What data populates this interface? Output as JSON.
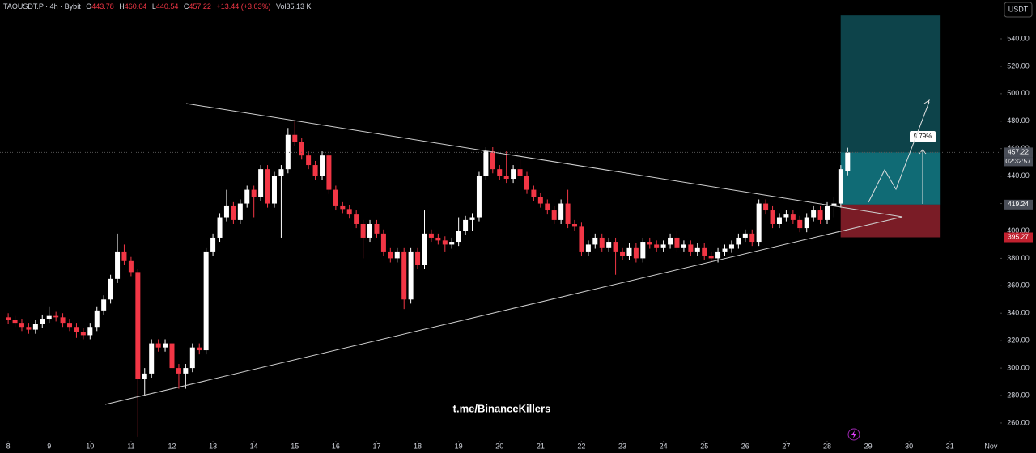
{
  "chart_data": {
    "type": "candlestick",
    "symbol": "TAOUSDT.P · 4h · Bybit",
    "ohlc_labels": [
      "O",
      "H",
      "L",
      "C"
    ],
    "change": "+13.44 (+3.03%)",
    "volume": "Vol35.13 K",
    "currency": "USDT",
    "countdown": "02:32:57",
    "watermark": "t.me/BinanceKillers",
    "xlim": [
      7.8,
      32.21
    ],
    "ylim": [
      247,
      568.3
    ],
    "xticks": [
      8,
      9,
      10,
      11,
      12,
      13,
      14,
      15,
      16,
      17,
      18,
      19,
      20,
      21,
      22,
      23,
      24,
      25,
      26,
      27,
      28,
      29,
      30,
      31,
      {
        "value": 32,
        "label": "Nov"
      }
    ],
    "yticks": [
      {
        "value": 260,
        "label": "260.00"
      },
      {
        "value": 280,
        "label": "280.00"
      },
      {
        "value": 300,
        "label": "300.00"
      },
      {
        "value": 320,
        "label": "320.00"
      },
      {
        "value": 340,
        "label": "340.00"
      },
      {
        "value": 360,
        "label": "360.00"
      },
      {
        "value": 380,
        "label": "380.00"
      },
      {
        "value": 400,
        "label": "400.00"
      },
      {
        "value": 420,
        "label": "420.00"
      },
      {
        "value": 440,
        "label": "440.00"
      },
      {
        "value": 460,
        "label": "460.00"
      },
      {
        "value": 480,
        "label": "480.00"
      },
      {
        "value": 500,
        "label": "500.00"
      },
      {
        "value": 520,
        "label": "520.00"
      },
      {
        "value": 540,
        "label": "540.00"
      }
    ],
    "up_color": "#ffffff",
    "down_color": "#f23645",
    "position": {
      "entry": 419.24,
      "stop": 395.27,
      "target": 557,
      "x_start": 28.33,
      "x_end": 30.77,
      "label": "9.79%",
      "entry_label": "419.24",
      "stop_label": "395.27"
    },
    "x": [
      8,
      8.167,
      8.333,
      8.5,
      8.667,
      8.833,
      9,
      9.167,
      9.333,
      9.5,
      9.667,
      9.833,
      10,
      10.167,
      10.333,
      10.5,
      10.667,
      10.833,
      11,
      11.167,
      11.333,
      11.5,
      11.667,
      11.833,
      12,
      12.167,
      12.333,
      12.5,
      12.667,
      12.833,
      13,
      13.167,
      13.333,
      13.5,
      13.667,
      13.833,
      14,
      14.167,
      14.333,
      14.5,
      14.667,
      14.833,
      15,
      15.167,
      15.333,
      15.5,
      15.667,
      15.833,
      16,
      16.167,
      16.333,
      16.5,
      16.667,
      16.833,
      17,
      17.167,
      17.333,
      17.5,
      17.667,
      17.833,
      18,
      18.167,
      18.333,
      18.5,
      18.667,
      18.833,
      19,
      19.167,
      19.333,
      19.5,
      19.667,
      19.833,
      20,
      20.167,
      20.333,
      20.5,
      20.667,
      20.833,
      21,
      21.167,
      21.333,
      21.5,
      21.667,
      21.833,
      22,
      22.167,
      22.333,
      22.5,
      22.667,
      22.833,
      23,
      23.167,
      23.333,
      23.5,
      23.667,
      23.833,
      24,
      24.167,
      24.333,
      24.5,
      24.667,
      24.833,
      25,
      25.167,
      25.333,
      25.5,
      25.667,
      25.833,
      26,
      26.167,
      26.333,
      26.5,
      26.667,
      26.833,
      27,
      27.167,
      27.333,
      27.5,
      27.667,
      27.833,
      28,
      28.167,
      28.333,
      28.5
    ],
    "ohlc": [
      [
        337,
        340,
        332,
        335
      ],
      [
        335,
        338,
        330,
        333
      ],
      [
        333,
        336,
        327,
        330
      ],
      [
        330,
        333,
        325,
        328
      ],
      [
        328,
        335,
        325,
        332
      ],
      [
        332,
        339,
        329,
        336
      ],
      [
        336,
        345,
        333,
        338
      ],
      [
        338,
        341,
        334,
        337
      ],
      [
        337,
        340,
        330,
        333
      ],
      [
        333,
        336,
        327,
        330
      ],
      [
        330,
        333,
        322,
        326
      ],
      [
        326,
        329,
        321,
        324
      ],
      [
        324,
        333,
        321,
        330
      ],
      [
        330,
        345,
        327,
        342
      ],
      [
        342,
        353,
        339,
        350
      ],
      [
        350,
        368,
        347,
        365
      ],
      [
        365,
        398,
        362,
        385
      ],
      [
        385,
        390,
        375,
        378
      ],
      [
        378,
        381,
        367,
        370
      ],
      [
        370,
        372,
        250,
        292
      ],
      [
        292,
        300,
        280,
        296
      ],
      [
        296,
        321,
        293,
        318
      ],
      [
        318,
        321,
        312,
        315
      ],
      [
        315,
        321,
        312,
        318
      ],
      [
        318,
        321,
        297,
        300
      ],
      [
        300,
        303,
        285,
        296
      ],
      [
        296,
        303,
        285,
        300
      ],
      [
        300,
        318,
        297,
        315
      ],
      [
        315,
        318,
        310,
        313
      ],
      [
        313,
        388,
        310,
        385
      ],
      [
        385,
        398,
        382,
        395
      ],
      [
        395,
        413,
        392,
        410
      ],
      [
        410,
        430,
        407,
        418
      ],
      [
        418,
        421,
        405,
        408
      ],
      [
        408,
        423,
        405,
        420
      ],
      [
        420,
        433,
        417,
        430
      ],
      [
        430,
        433,
        410,
        425
      ],
      [
        425,
        448,
        422,
        445
      ],
      [
        445,
        448,
        417,
        420
      ],
      [
        420,
        443,
        417,
        440
      ],
      [
        440,
        448,
        395,
        445
      ],
      [
        445,
        475,
        442,
        470
      ],
      [
        470,
        480,
        462,
        465
      ],
      [
        465,
        468,
        452,
        455
      ],
      [
        455,
        458,
        445,
        448
      ],
      [
        448,
        451,
        437,
        440
      ],
      [
        440,
        458,
        437,
        455
      ],
      [
        455,
        458,
        427,
        430
      ],
      [
        430,
        433,
        415,
        418
      ],
      [
        418,
        421,
        413,
        416
      ],
      [
        416,
        419,
        409,
        412
      ],
      [
        412,
        415,
        402,
        405
      ],
      [
        405,
        408,
        380,
        395
      ],
      [
        395,
        408,
        392,
        405
      ],
      [
        405,
        408,
        395,
        398
      ],
      [
        398,
        401,
        382,
        385
      ],
      [
        385,
        388,
        377,
        380
      ],
      [
        380,
        388,
        377,
        385
      ],
      [
        385,
        388,
        343,
        350
      ],
      [
        350,
        388,
        347,
        385
      ],
      [
        385,
        388,
        372,
        375
      ],
      [
        375,
        415,
        372,
        398
      ],
      [
        398,
        401,
        392,
        395
      ],
      [
        395,
        398,
        390,
        393
      ],
      [
        393,
        396,
        385,
        390
      ],
      [
        390,
        395,
        387,
        392
      ],
      [
        392,
        410,
        389,
        400
      ],
      [
        400,
        411,
        397,
        408
      ],
      [
        408,
        413,
        400,
        410
      ],
      [
        410,
        443,
        407,
        440
      ],
      [
        440,
        461,
        437,
        458
      ],
      [
        458,
        461,
        442,
        445
      ],
      [
        445,
        448,
        437,
        440
      ],
      [
        440,
        458,
        435,
        438
      ],
      [
        438,
        448,
        435,
        445
      ],
      [
        445,
        452,
        437,
        440
      ],
      [
        440,
        443,
        427,
        430
      ],
      [
        430,
        433,
        422,
        425
      ],
      [
        425,
        428,
        417,
        420
      ],
      [
        420,
        423,
        412,
        415
      ],
      [
        415,
        418,
        405,
        408
      ],
      [
        408,
        423,
        405,
        420
      ],
      [
        420,
        430,
        402,
        405
      ],
      [
        405,
        408,
        400,
        403
      ],
      [
        403,
        406,
        382,
        385
      ],
      [
        385,
        393,
        382,
        390
      ],
      [
        390,
        398,
        387,
        395
      ],
      [
        395,
        398,
        385,
        388
      ],
      [
        388,
        395,
        385,
        392
      ],
      [
        392,
        395,
        368,
        385
      ],
      [
        385,
        388,
        379,
        382
      ],
      [
        382,
        391,
        379,
        388
      ],
      [
        388,
        391,
        377,
        380
      ],
      [
        380,
        395,
        377,
        392
      ],
      [
        392,
        395,
        387,
        390
      ],
      [
        390,
        393,
        385,
        388
      ],
      [
        388,
        393,
        385,
        390
      ],
      [
        390,
        398,
        387,
        395
      ],
      [
        395,
        400,
        385,
        388
      ],
      [
        388,
        393,
        385,
        390
      ],
      [
        390,
        393,
        382,
        385
      ],
      [
        385,
        391,
        382,
        388
      ],
      [
        388,
        391,
        379,
        382
      ],
      [
        382,
        385,
        377,
        380
      ],
      [
        380,
        388,
        377,
        385
      ],
      [
        385,
        390,
        382,
        387
      ],
      [
        387,
        393,
        384,
        390
      ],
      [
        390,
        398,
        387,
        395
      ],
      [
        395,
        401,
        392,
        398
      ],
      [
        398,
        401,
        389,
        392
      ],
      [
        392,
        423,
        389,
        420
      ],
      [
        420,
        423,
        412,
        415
      ],
      [
        415,
        418,
        402,
        405
      ],
      [
        405,
        413,
        402,
        410
      ],
      [
        410,
        415,
        407,
        412
      ],
      [
        412,
        415,
        405,
        408
      ],
      [
        408,
        411,
        399,
        402
      ],
      [
        402,
        413,
        399,
        410
      ],
      [
        410,
        418,
        407,
        415
      ],
      [
        415,
        418,
        405,
        408
      ],
      [
        408,
        421,
        405,
        418
      ],
      [
        418,
        425,
        410,
        420
      ],
      [
        420,
        448,
        417,
        445
      ],
      [
        443.78,
        460.64,
        440.54,
        457.22
      ]
    ]
  }
}
